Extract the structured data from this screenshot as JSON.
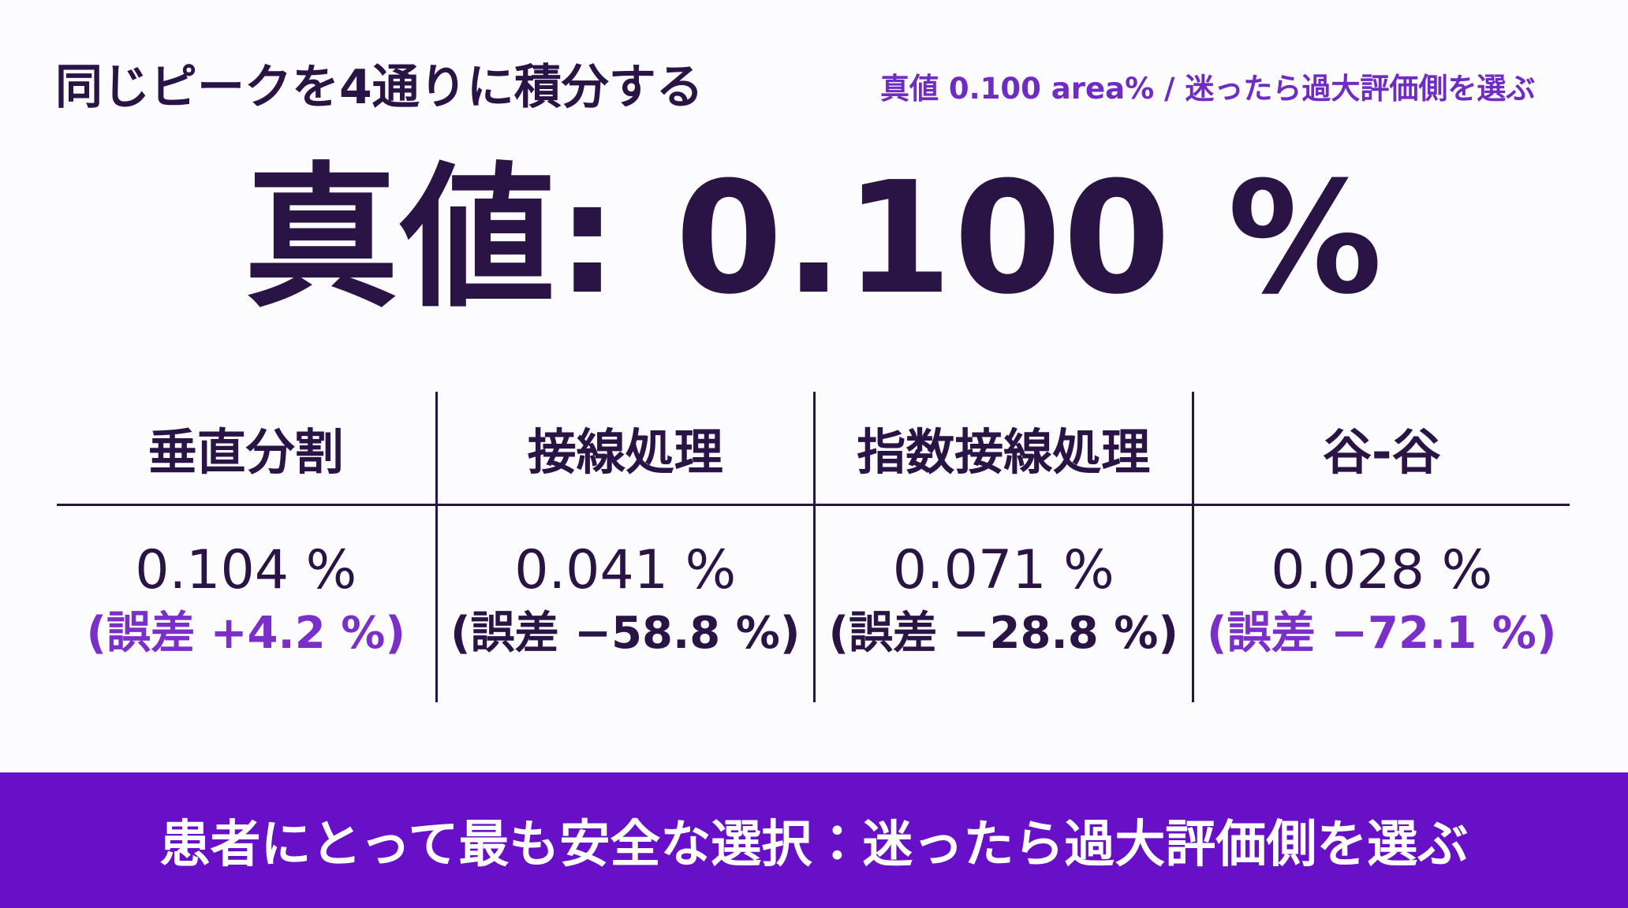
{
  "header": {
    "title": "同じピークを4通りに積分する",
    "subtitle": "真値 0.100 area% / 迷ったら過大評価側を選ぶ"
  },
  "hero": "真値: 0.100 %",
  "table": {
    "columns": [
      {
        "name": "垂直分割",
        "value": "0.104 %",
        "error": "(誤差 +4.2 %)"
      },
      {
        "name": "接線処理",
        "value": "0.041 %",
        "error": "(誤差 −58.8 %)"
      },
      {
        "name": "指数接線処理",
        "value": "0.071 %",
        "error": "(誤差 −28.8 %)"
      },
      {
        "name": "谷-谷",
        "value": "0.028 %",
        "error": "(誤差 −72.1 %)"
      }
    ]
  },
  "footer": "患者にとって最も安全な選択：迷ったら過大評価側を選ぶ"
}
